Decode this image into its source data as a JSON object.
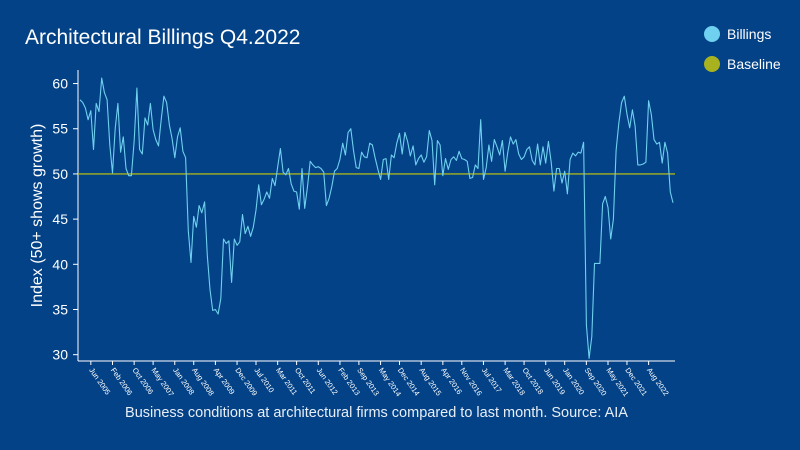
{
  "colors": {
    "background": "#034287",
    "billings": "#6fd0ef",
    "baseline": "#a8b21e",
    "axis": "#ffffff"
  },
  "chart_data": {
    "type": "line",
    "title": "Architectural Billings Q4.2022",
    "caption": "Business conditions at architectural firms compared to last month. Source: AIA",
    "xlabel": "",
    "ylabel": "Index (50+ shows growth)",
    "ylim": [
      29.3,
      61.5
    ],
    "yticks": [
      30,
      35,
      40,
      45,
      50,
      55,
      60
    ],
    "grid": false,
    "legend_position": "top-right",
    "x_tick_labels": [
      "Jun 2005",
      "Feb 2006",
      "Oct 2006",
      "May 2007",
      "Jan 2008",
      "Aug 2008",
      "Apr 2009",
      "Dec 2009",
      "Jul 2010",
      "Mar 2011",
      "Oct 2011",
      "Jun 2012",
      "Feb 2013",
      "Sep 2013",
      "May 2014",
      "Dec 2014",
      "Aug 2015",
      "Apr 2016",
      "Nov 2016",
      "Jul 2017",
      "Mar 2018",
      "Oct 2018",
      "Jun 2019",
      "Jan 2020",
      "Sep 2020",
      "May 2021",
      "Dec 2021",
      "Aug 2022"
    ],
    "series": [
      {
        "name": "Billings",
        "color": "#6fd0ef",
        "values": [
          58.2,
          57.9,
          57.3,
          56.0,
          57.0,
          52.7,
          57.8,
          56.9,
          60.6,
          59.0,
          58.2,
          53.2,
          50.1,
          55.0,
          57.8,
          52.4,
          54.1,
          50.6,
          49.8,
          49.8,
          53.7,
          59.5,
          52.7,
          52.2,
          56.2,
          55.4,
          57.8,
          54.9,
          53.8,
          53.1,
          56.0,
          58.6,
          57.9,
          55.4,
          53.9,
          51.8,
          54.1,
          55.1,
          52.5,
          51.8,
          43.7,
          40.2,
          45.3,
          44.1,
          46.5,
          45.7,
          46.9,
          41.0,
          37.2,
          34.9,
          35.0,
          34.5,
          36.2,
          42.8,
          42.3,
          42.6,
          38.0,
          42.8,
          42.1,
          42.5,
          45.5,
          43.4,
          44.2,
          43.1,
          44.1,
          46.0,
          48.8,
          46.6,
          47.2,
          48.0,
          47.3,
          49.5,
          48.7,
          50.8,
          52.8,
          50.2,
          49.9,
          50.6,
          48.9,
          48.1,
          48.0,
          46.1,
          50.6,
          46.2,
          48.6,
          51.4,
          51.0,
          50.7,
          50.8,
          50.6,
          50.2,
          46.5,
          47.3,
          48.6,
          50.3,
          50.6,
          51.6,
          53.4,
          52.1,
          54.6,
          55.0,
          52.6,
          50.7,
          50.6,
          52.4,
          51.9,
          51.8,
          53.4,
          53.2,
          51.8,
          50.5,
          49.4,
          51.6,
          51.7,
          49.4,
          52.1,
          51.8,
          53.4,
          54.5,
          52.2,
          54.6,
          53.6,
          52.0,
          53.1,
          51.0,
          51.7,
          52.1,
          51.3,
          51.9,
          54.8,
          53.7,
          48.8,
          53.7,
          53.2,
          49.8,
          51.7,
          50.5,
          51.6,
          51.9,
          51.5,
          52.5,
          51.7,
          51.6,
          51.4,
          49.5,
          49.6,
          51.0,
          50.6,
          56.0,
          49.4,
          50.7,
          53.2,
          51.4,
          53.8,
          53.0,
          52.1,
          53.7,
          50.3,
          52.4,
          54.1,
          53.3,
          53.8,
          52.2,
          51.6,
          51.9,
          52.7,
          53.0,
          51.5,
          51.0,
          53.3,
          51.0,
          53.0,
          51.2,
          53.6,
          51.3,
          48.1,
          50.6,
          50.6,
          49.0,
          50.3,
          47.8,
          51.6,
          52.3,
          52.0,
          52.4,
          52.3,
          53.5,
          33.3,
          29.6,
          32.0,
          40.1,
          40.1,
          40.1,
          46.7,
          47.5,
          46.3,
          42.8,
          45.0,
          52.6,
          55.6,
          57.9,
          58.6,
          56.6,
          55.1,
          57.1,
          55.3,
          51.0,
          51.0,
          51.1,
          51.3,
          58.1,
          56.6,
          53.8,
          53.3,
          53.5,
          51.2,
          53.5,
          52.3,
          48.0,
          46.8
        ],
        "x_tick_indices": [
          4,
          12,
          20,
          27,
          35,
          42,
          50,
          58,
          65,
          73,
          80,
          88,
          96,
          103,
          111,
          118,
          126,
          134,
          141,
          149,
          157,
          164,
          172,
          179,
          187,
          195,
          202,
          210
        ]
      },
      {
        "name": "Baseline",
        "color": "#a8b21e",
        "constant": 50
      }
    ]
  }
}
